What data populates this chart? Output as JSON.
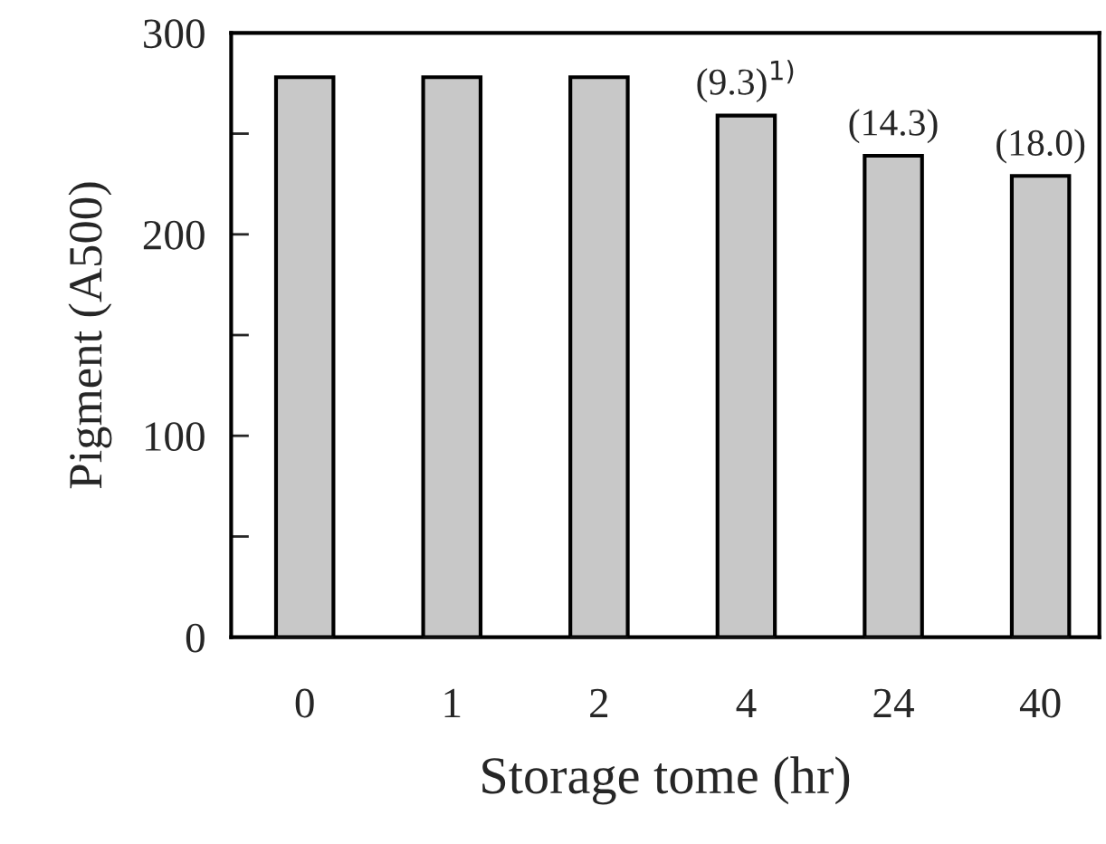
{
  "chart_data": {
    "type": "bar",
    "xlabel": "Storage tome (hr)",
    "ylabel": "Pigment (A500)",
    "categories": [
      "0",
      "1",
      "2",
      "4",
      "24",
      "40"
    ],
    "values": [
      278,
      278,
      278,
      259,
      239,
      229
    ],
    "annotations": [
      {
        "text": "(9.3)$^{1)}$",
        "x": "4",
        "y": 259
      },
      {
        "text": "(14.3)",
        "x": "24",
        "y": 239
      },
      {
        "text": "(18.0)",
        "x": "40",
        "y": 229
      }
    ],
    "color": "#c8c8c8",
    "ylim": [
      0,
      300
    ],
    "yticks": [
      0,
      {
        "value": 50,
        "label": null
      },
      100,
      {
        "value": 150,
        "label": null
      },
      200,
      {
        "value": 250,
        "label": null
      },
      300
    ],
    "grid": false,
    "legend": false
  }
}
